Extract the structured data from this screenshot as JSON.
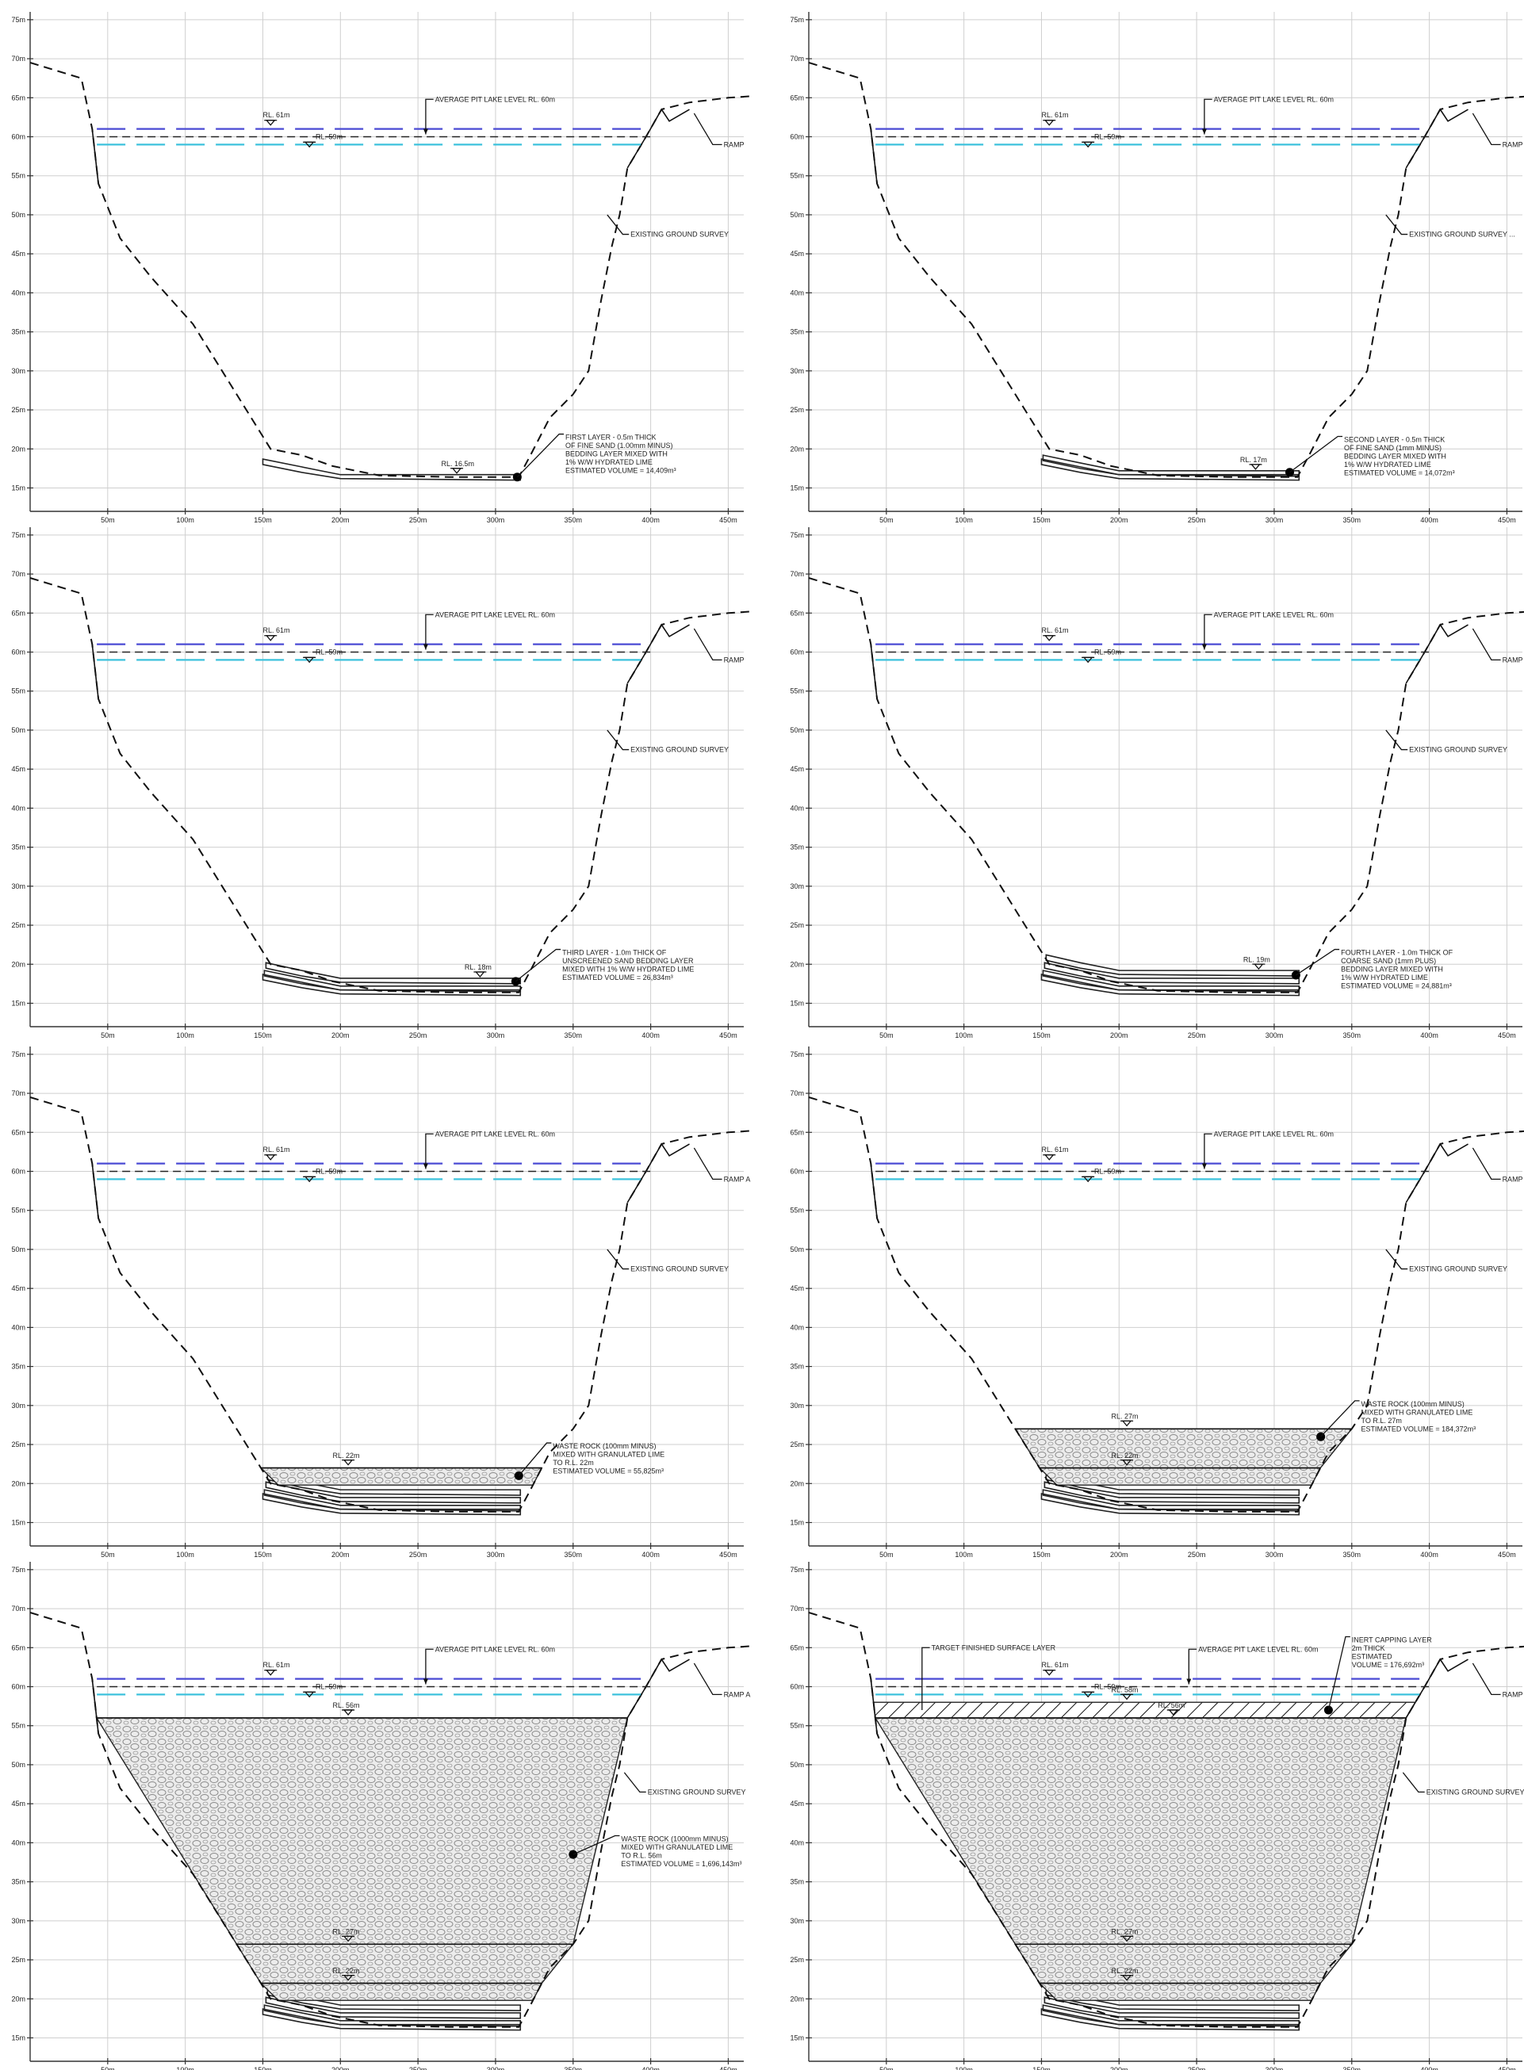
{
  "axes": {
    "y_ticks": [
      "75m",
      "70m",
      "65m",
      "60m",
      "55m",
      "50m",
      "45m",
      "40m",
      "35m",
      "30m",
      "25m",
      "20m",
      "15m"
    ],
    "y_values": [
      75,
      70,
      65,
      60,
      55,
      50,
      45,
      40,
      35,
      30,
      25,
      20,
      15
    ],
    "x_ticks": [
      "50m",
      "100m",
      "150m",
      "200m",
      "250m",
      "300m",
      "350m",
      "400m",
      "450m"
    ],
    "x_values": [
      50,
      100,
      150,
      200,
      250,
      300,
      350,
      400,
      450
    ],
    "y_range": [
      12,
      76
    ],
    "x_range": [
      0,
      460
    ]
  },
  "levels": {
    "top": 61,
    "middle": 60,
    "low": 59,
    "top_label": "RL. 61m",
    "low_label": "RL. 59m",
    "top_color": "#4a4ad4",
    "low_color": "#3cc2dc"
  },
  "common_labels": {
    "lake_level": "AVERAGE PIT LAKE LEVEL RL. 60m",
    "ground_survey": "EXISTING GROUND SURVEY",
    "ramp": "RAMP"
  },
  "ground_profile": [
    [
      0,
      69.5
    ],
    [
      33,
      67.5
    ],
    [
      40,
      61
    ],
    [
      44,
      54
    ],
    [
      58,
      47
    ],
    [
      78,
      42
    ],
    [
      105,
      36
    ],
    [
      130,
      28
    ],
    [
      155,
      20
    ],
    [
      175,
      19.2
    ],
    [
      195,
      17.8
    ],
    [
      225,
      16.6
    ],
    [
      270,
      16.4
    ],
    [
      315,
      16.4
    ],
    [
      322,
      19
    ],
    [
      335,
      24
    ],
    [
      350,
      27
    ],
    [
      360,
      30
    ],
    [
      368,
      39
    ],
    [
      375,
      46
    ],
    [
      380,
      50
    ],
    [
      385,
      56
    ],
    [
      397,
      60
    ],
    [
      407,
      63.5
    ],
    [
      425,
      64.4
    ],
    [
      450,
      65
    ],
    [
      465,
      65.2
    ]
  ],
  "panels": [
    {
      "id": "first-layer",
      "annotation": [
        "FIRST LAYER - 0.5m THICK",
        "OF FINE SAND (1.00mm MINUS)",
        "BEDDING LAYER MIXED WITH",
        "1% W/W HYDRATED LIME",
        "ESTIMATED VOLUME = 14,409m³"
      ],
      "rl_labels": [
        {
          "text": "RL. 16.5m",
          "x": 270,
          "y": 16.5
        }
      ],
      "ramp_label": "RAMP"
    },
    {
      "id": "second-layer",
      "annotation": [
        "SECOND LAYER - 0.5m THICK",
        "OF FINE SAND (1mm MINUS)",
        "BEDDING LAYER MIXED WITH",
        "1% W/W HYDRATED LIME",
        "ESTIMATED VOLUME = 14,072m³"
      ],
      "rl_labels": [
        {
          "text": "RL. 17m",
          "x": 283,
          "y": 17
        }
      ],
      "ramp_label": "RAMP A",
      "ground_label": "EXISTING GROUND SURVEY ..."
    },
    {
      "id": "third-layer",
      "annotation": [
        "THIRD LAYER - 1.0m THICK OF",
        "UNSCREENED SAND BEDDING LAYER",
        "MIXED WITH 1% W/W HYDRATED LIME",
        "ESTIMATED VOLUME = 26,834m³"
      ],
      "rl_labels": [
        {
          "text": "RL. 18m",
          "x": 285,
          "y": 18
        }
      ],
      "ramp_label": "RAMP"
    },
    {
      "id": "fourth-layer",
      "annotation": [
        "FOURTH LAYER - 1.0m THICK OF",
        "COARSE SAND (1mm PLUS)",
        "BEDDING LAYER MIXED WITH",
        "1% W/W HYDRATED LIME",
        "ESTIMATED VOLUME = 24,881m³"
      ],
      "rl_labels": [
        {
          "text": "RL. 19m",
          "x": 285,
          "y": 19
        }
      ],
      "ramp_label": "RAMP"
    },
    {
      "id": "waste-rock-22",
      "annotation": [
        "WASTE ROCK (100mm MINUS)",
        "MIXED WITH GRANULATED LIME",
        "TO R.L. 22m",
        "ESTIMATED VOLUME = 55,825m³"
      ],
      "rl_labels": [
        {
          "text": "RL. 22m",
          "x": 200,
          "y": 22
        }
      ],
      "ramp_label": "RAMP A"
    },
    {
      "id": "waste-rock-27",
      "annotation": [
        "WASTE ROCK (100mm MINUS)",
        "MIXED WITH GRANULATED LIME",
        "TO R.L. 27m",
        "ESTIMATED VOLUME = 184,372m³"
      ],
      "rl_labels": [
        {
          "text": "RL. 27m",
          "x": 200,
          "y": 27
        },
        {
          "text": "RL. 22m",
          "x": 200,
          "y": 22
        }
      ],
      "ramp_label": "RAMP"
    },
    {
      "id": "waste-rock-56",
      "annotation": [
        "WASTE ROCK (1000mm MINUS)",
        "MIXED WITH GRANULATED LIME",
        "TO R.L. 56m",
        "ESTIMATED VOLUME = 1,696,143m³"
      ],
      "rl_labels": [
        {
          "text": "RL. 56m",
          "x": 200,
          "y": 56
        },
        {
          "text": "RL. 27m",
          "x": 200,
          "y": 27
        },
        {
          "text": "RL. 22m",
          "x": 200,
          "y": 22
        }
      ],
      "ramp_label": "RAMP A"
    },
    {
      "id": "inert-capping",
      "annotation": [
        "INERT CAPPING LAYER",
        "2m THICK",
        "ESTIMATED",
        "VOLUME = 176,692m³"
      ],
      "target_label": "TARGET FINISHED SURFACE LAYER",
      "rl_labels": [
        {
          "text": "RL. 58m",
          "x": 200,
          "y": 58
        },
        {
          "text": "RL. 56m",
          "x": 230,
          "y": 56
        },
        {
          "text": "RL. 27m",
          "x": 200,
          "y": 27
        },
        {
          "text": "RL. 22m",
          "x": 200,
          "y": 22
        }
      ],
      "ramp_label": "RAMP"
    }
  ]
}
